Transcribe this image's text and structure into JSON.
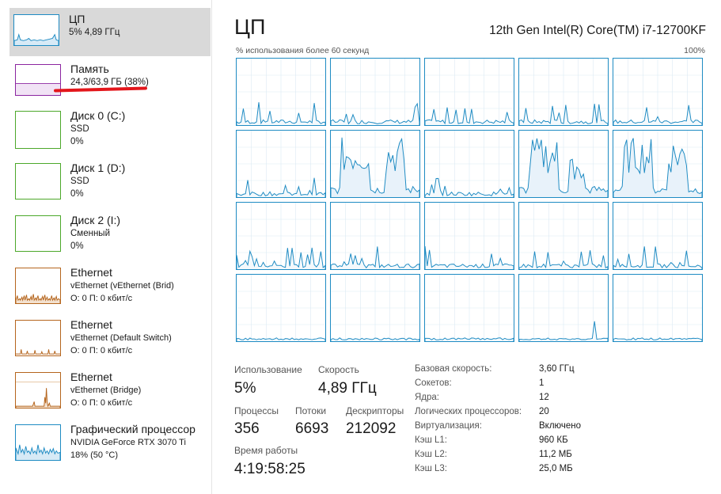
{
  "sidebar": {
    "items": [
      {
        "title": "ЦП",
        "lines": [
          "5% 4,89 ГГц"
        ],
        "color": "#1e8bc3",
        "kind": "cpu"
      },
      {
        "title": "Память",
        "lines": [
          "24,3/63,9 ГБ (38%)"
        ],
        "color": "#8b25a0",
        "kind": "memory",
        "fill": 0.38
      },
      {
        "title": "Диск 0 (C:)",
        "lines": [
          "SSD",
          "0%"
        ],
        "color": "#4ca82a",
        "kind": "disk"
      },
      {
        "title": "Диск 1 (D:)",
        "lines": [
          "SSD",
          "0%"
        ],
        "color": "#4ca82a",
        "kind": "disk"
      },
      {
        "title": "Диск 2 (I:)",
        "lines": [
          "Сменный",
          "0%"
        ],
        "color": "#4ca82a",
        "kind": "disk"
      },
      {
        "title": "Ethernet",
        "lines": [
          "vEthernet (vEthernet (Brid)",
          "О: 0 П: 0 кбит/с"
        ],
        "color": "#b5651d",
        "kind": "net1"
      },
      {
        "title": "Ethernet",
        "lines": [
          "vEthernet (Default Switch)",
          "О: 0 П: 0 кбит/с"
        ],
        "color": "#b5651d",
        "kind": "net2"
      },
      {
        "title": "Ethernet",
        "lines": [
          "vEthernet (Bridge)",
          "О: 0 П: 0 кбит/с"
        ],
        "color": "#b5651d",
        "kind": "net3"
      },
      {
        "title": "Графический процессор",
        "lines": [
          "NVIDIA GeForce RTX 3070 Ti",
          "18% (50 °C)"
        ],
        "color": "#1e8bc3",
        "kind": "gpu"
      }
    ]
  },
  "header": {
    "title": "ЦП",
    "model": "12th Gen Intel(R) Core(TM) i7-12700KF"
  },
  "graph": {
    "label": "% использования более 60 секунд",
    "max_label": "100%",
    "accent": "#1e8bc3",
    "rows": 4,
    "cols": 5
  },
  "stats": {
    "usage_label": "Использование",
    "usage_value": "5%",
    "speed_label": "Скорость",
    "speed_value": "4,89 ГГц",
    "processes_label": "Процессы",
    "processes_value": "356",
    "threads_label": "Потоки",
    "threads_value": "6693",
    "handles_label": "Дескрипторы",
    "handles_value": "212092",
    "uptime_label": "Время работы",
    "uptime_value": "4:19:58:25"
  },
  "specs": [
    {
      "label": "Базовая скорость:",
      "value": "3,60 ГГц"
    },
    {
      "label": "Сокетов:",
      "value": "1"
    },
    {
      "label": "Ядра:",
      "value": "12"
    },
    {
      "label": "Логических процессоров:",
      "value": "20"
    },
    {
      "label": "Виртуализация:",
      "value": "Включено"
    },
    {
      "label": "Кэш L1:",
      "value": "960 КБ"
    },
    {
      "label": "Кэш L2:",
      "value": "11,2 МБ"
    },
    {
      "label": "Кэш L3:",
      "value": "25,0 МБ"
    }
  ],
  "annotation_color": "#e3161b"
}
